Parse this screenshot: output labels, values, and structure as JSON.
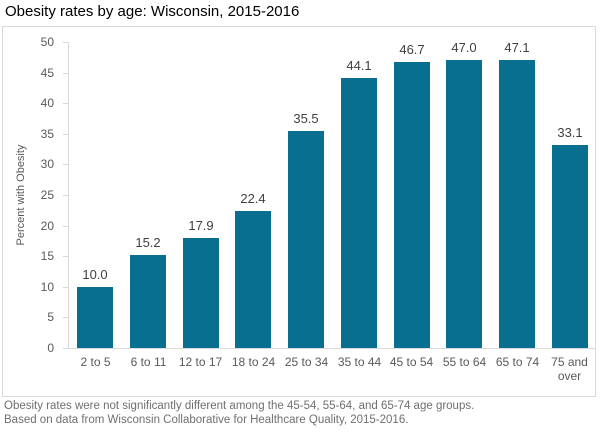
{
  "title": "Obesity rates by age: Wisconsin, 2015-2016",
  "chart_data": {
    "type": "bar",
    "categories": [
      "2 to 5",
      "6 to 11",
      "12 to 17",
      "18 to 24",
      "25 to 34",
      "35 to 44",
      "45 to 54",
      "55 to 64",
      "65 to 74",
      "75 and over"
    ],
    "values": [
      10.0,
      15.2,
      17.9,
      22.4,
      35.5,
      44.1,
      46.7,
      47.0,
      47.1,
      33.1
    ],
    "value_label_format": "one_decimal",
    "title": "Obesity rates by age: Wisconsin, 2015-2016",
    "xlabel": "",
    "ylabel": "Percent with Obesity",
    "ylim": [
      0,
      50
    ],
    "yticks": [
      0,
      5,
      10,
      15,
      20,
      25,
      30,
      35,
      40,
      45,
      50
    ],
    "grid": false,
    "legend": "none"
  },
  "notes": [
    "Obesity rates were not significantly different among the 45-54, 55-64, and 65-74 age groups.",
    "Based on data from Wisconsin Collaborative for Healthcare Quality, 2015-2016."
  ],
  "colors": {
    "bar": "#086F90",
    "axis_line": "#d9d9d9",
    "box_border": "#d9d9d9",
    "tick_label": "#595959",
    "value_label": "#3f3f3f",
    "note_text": "#6f6f6f",
    "title_text": "#000000"
  }
}
